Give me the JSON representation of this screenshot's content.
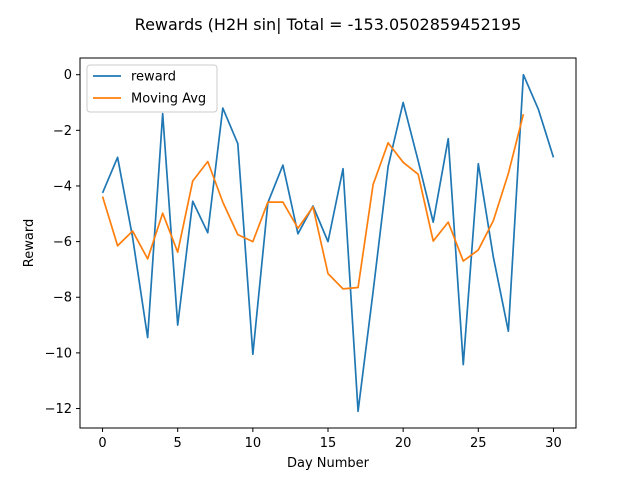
{
  "chart_data": {
    "type": "line",
    "title": "Rewards (H2H sin| Total = -153.0502859452195",
    "xlabel": "Day Number",
    "ylabel": "Reward",
    "xlim": [
      -1.5,
      31.5
    ],
    "ylim": [
      -12.7,
      0.6
    ],
    "xticks": [
      0,
      5,
      10,
      15,
      20,
      25,
      30
    ],
    "xtick_labels": [
      "0",
      "5",
      "10",
      "15",
      "20",
      "25",
      "30"
    ],
    "yticks": [
      0,
      -2,
      -4,
      -6,
      -8,
      -10,
      -12
    ],
    "ytick_labels": [
      "0",
      "−2",
      "−4",
      "−6",
      "−8",
      "−10",
      "−12"
    ],
    "grid": false,
    "legend_position": "top-left",
    "series": [
      {
        "name": "reward",
        "color": "#1f77b4",
        "x": [
          0,
          1,
          2,
          3,
          4,
          5,
          6,
          7,
          8,
          9,
          10,
          11,
          12,
          13,
          14,
          15,
          16,
          17,
          18,
          19,
          20,
          21,
          22,
          23,
          24,
          25,
          26,
          27,
          28,
          29,
          30
        ],
        "values": [
          -4.25,
          -2.97,
          -5.85,
          -9.45,
          -1.4,
          -9.0,
          -4.55,
          -5.68,
          -1.2,
          -2.48,
          -10.05,
          -4.6,
          -3.25,
          -5.72,
          -4.72,
          -6.0,
          -3.38,
          -12.1,
          -7.8,
          -3.3,
          -1.0,
          -3.1,
          -5.3,
          -2.3,
          -10.42,
          -3.2,
          -6.55,
          -9.22,
          0.0,
          -1.25,
          -2.97
        ]
      },
      {
        "name": "Moving Avg",
        "color": "#ff7f0e",
        "x": [
          0,
          1,
          2,
          3,
          4,
          5,
          6,
          7,
          8,
          9,
          10,
          11,
          12,
          13,
          14,
          15,
          16,
          17,
          18,
          19,
          20,
          21,
          22,
          23,
          24,
          25,
          26,
          27,
          28
        ],
        "values": [
          -4.38,
          -6.15,
          -5.62,
          -6.62,
          -4.98,
          -6.38,
          -3.82,
          -3.12,
          -4.58,
          -5.75,
          -6.0,
          -4.58,
          -4.58,
          -5.52,
          -4.75,
          -7.15,
          -7.7,
          -7.65,
          -3.95,
          -2.45,
          -3.15,
          -3.58,
          -5.98,
          -5.3,
          -6.7,
          -6.3,
          -5.25,
          -3.55,
          -1.42
        ]
      }
    ]
  }
}
